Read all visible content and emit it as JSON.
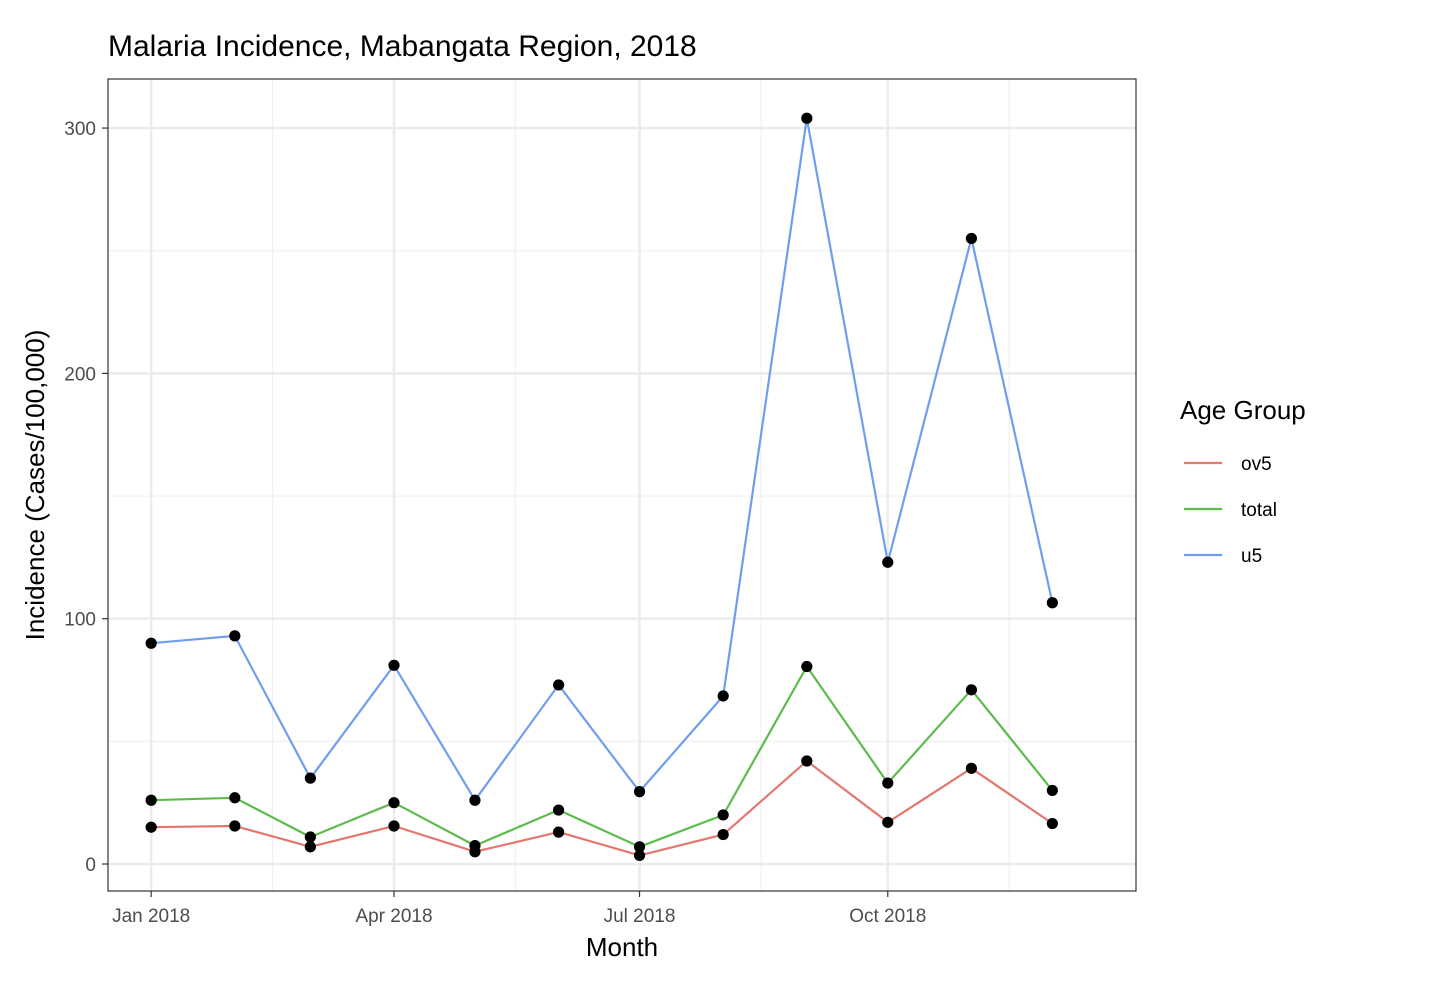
{
  "chart_data": {
    "type": "line",
    "title": "Malaria Incidence, Mabangata Region, 2018",
    "xlabel": "Month",
    "ylabel": "Incidence (Cases/100,000)",
    "x": [
      "2018-01",
      "2018-02",
      "2018-03",
      "2018-04",
      "2018-05",
      "2018-06",
      "2018-07",
      "2018-08",
      "2018-09",
      "2018-10",
      "2018-11",
      "2018-12"
    ],
    "x_ticks": [
      {
        "month": "2018-01",
        "label": "Jan 2018"
      },
      {
        "month": "2018-04",
        "label": "Apr 2018"
      },
      {
        "month": "2018-07",
        "label": "Jul 2018"
      },
      {
        "month": "2018-10",
        "label": "Oct 2018"
      }
    ],
    "xlim": [
      "2017-12-16",
      "2019-01-01"
    ],
    "ylim": [
      -11,
      320
    ],
    "y_ticks": [
      0,
      100,
      200,
      300
    ],
    "grid": true,
    "legend_title": "Age Group",
    "legend_position": "right",
    "point_color": "#000000",
    "series": [
      {
        "name": "ov5",
        "color": "#E4776C",
        "values": [
          15,
          15.5,
          7,
          15.5,
          5,
          13,
          3.5,
          12,
          42,
          17,
          39,
          16.5
        ]
      },
      {
        "name": "total",
        "color": "#5DBB4C",
        "values": [
          26,
          27,
          11,
          25,
          7.5,
          22,
          7,
          20,
          80.5,
          33,
          71,
          30
        ]
      },
      {
        "name": "u5",
        "color": "#6F9EEE",
        "values": [
          90,
          93,
          35,
          81,
          26,
          73,
          29.5,
          68.5,
          304,
          123,
          255,
          106.5
        ]
      }
    ]
  }
}
